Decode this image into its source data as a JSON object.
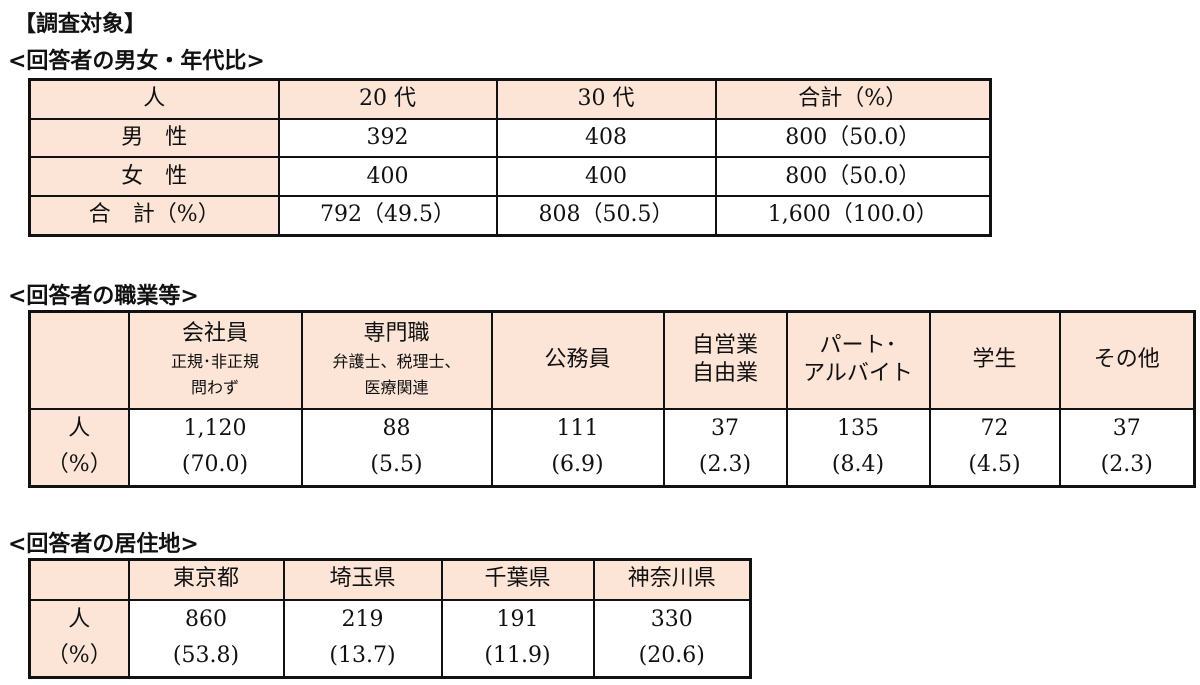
{
  "title": "【調査対象】",
  "gender_age": {
    "heading": "<回答者の男女・年代比>",
    "header": [
      "人",
      "20 代",
      "30 代",
      "合計（%）"
    ],
    "rows": [
      [
        "男　性",
        "392",
        "408",
        "800（50.0）"
      ],
      [
        "女　性",
        "400",
        "400",
        "800（50.0）"
      ],
      [
        "合　計（%）",
        "792（49.5）",
        "808（50.5）",
        "1,600（100.0）"
      ]
    ]
  },
  "occupation": {
    "heading": "<回答者の職業等>",
    "row_label": "人",
    "row_label2": "（%）",
    "columns": [
      {
        "name": "会社員",
        "note1": "正規･非正規",
        "note2": "問わず",
        "count": "1,120",
        "pct": "(70.0)"
      },
      {
        "name": "専門職",
        "note1": "弁護士、税理士、",
        "note2": "医療関連",
        "count": "88",
        "pct": "(5.5)"
      },
      {
        "name": "公務員",
        "note1": "",
        "note2": "",
        "count": "111",
        "pct": "(6.9)"
      },
      {
        "name": "自営業",
        "note1": "自由業",
        "note2": "",
        "count": "37",
        "pct": "(2.3)"
      },
      {
        "name": "パート･",
        "note1": "アルバイト",
        "note2": "",
        "count": "135",
        "pct": "(8.4)"
      },
      {
        "name": "学生",
        "note1": "",
        "note2": "",
        "count": "72",
        "pct": "(4.5)"
      },
      {
        "name": "その他",
        "note1": "",
        "note2": "",
        "count": "37",
        "pct": "(2.3)"
      }
    ]
  },
  "residence": {
    "heading": "<回答者の居住地>",
    "row_label": "人",
    "row_label2": "（%）",
    "columns": [
      {
        "name": "東京都",
        "count": "860",
        "pct": "(53.8)"
      },
      {
        "name": "埼玉県",
        "count": "219",
        "pct": "(13.7)"
      },
      {
        "name": "千葉県",
        "count": "191",
        "pct": "(11.9)"
      },
      {
        "name": "神奈川県",
        "count": "330",
        "pct": "(20.6)"
      }
    ]
  },
  "colors": {
    "header_fill": "#fce4d6",
    "border": "#111111"
  }
}
